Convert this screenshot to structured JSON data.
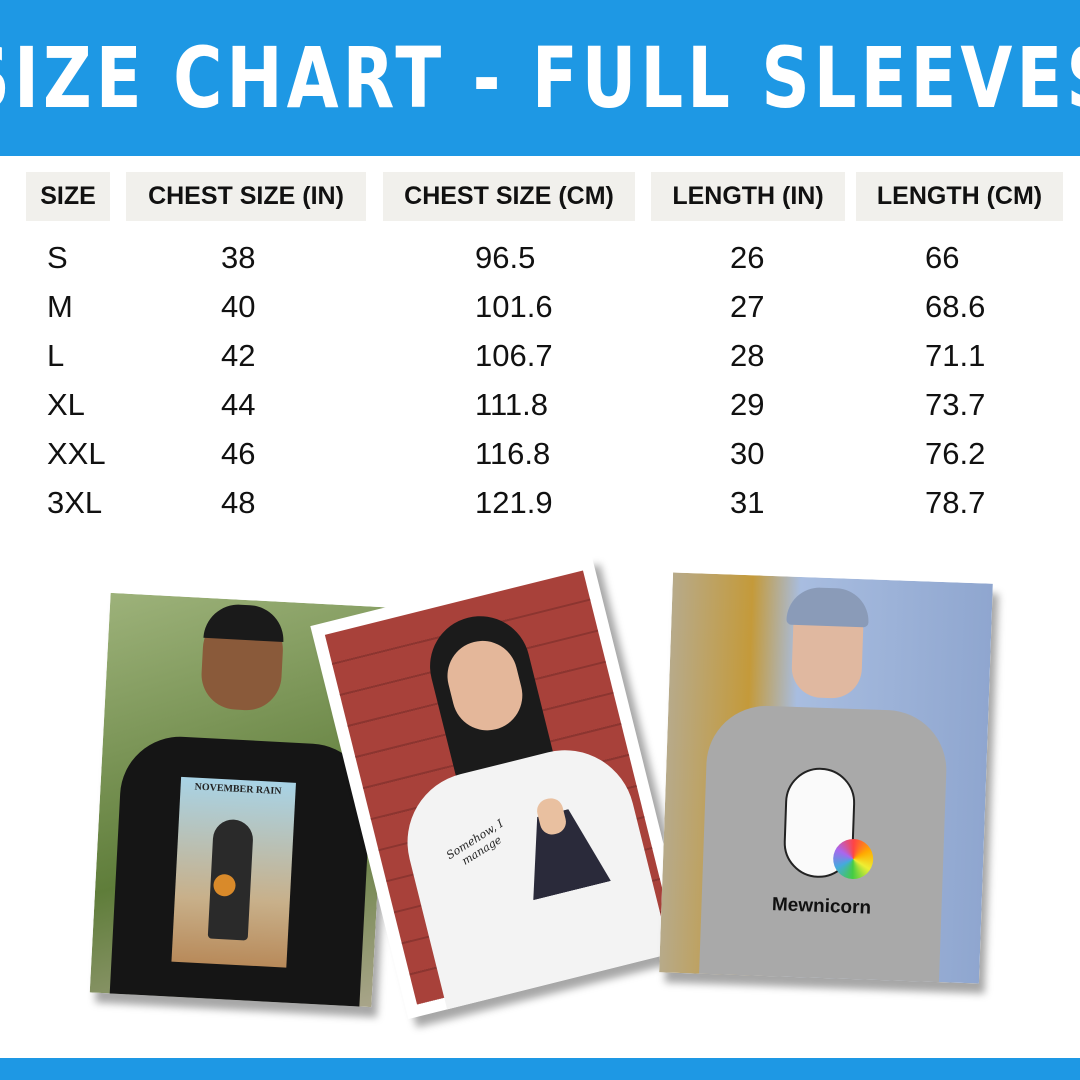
{
  "title": "SIZE CHART - FULL SLEEVES",
  "colors": {
    "accent": "#1e98e4",
    "header_cell_bg": "#f1f0ec"
  },
  "chart_data": {
    "type": "table",
    "columns": [
      "SIZE",
      "CHEST SIZE (IN)",
      "CHEST SIZE (CM)",
      "LENGTH (IN)",
      "LENGTH (CM)"
    ],
    "rows": [
      [
        "S",
        "38",
        "96.5",
        "26",
        "66"
      ],
      [
        "M",
        "40",
        "101.6",
        "27",
        "68.6"
      ],
      [
        "L",
        "42",
        "106.7",
        "28",
        "71.1"
      ],
      [
        "XL",
        "44",
        "111.8",
        "29",
        "73.7"
      ],
      [
        "XXL",
        "46",
        "116.8",
        "30",
        "76.2"
      ],
      [
        "3XL",
        "48",
        "121.9",
        "31",
        "78.7"
      ]
    ]
  },
  "photos": [
    {
      "print_text": "NOVEMBER RAIN",
      "shirt_color": "#151515",
      "bg": "#7f9a55"
    },
    {
      "print_text": "Somehow, I manage",
      "shirt_color": "#f3f3f3",
      "bg": "#a8413a"
    },
    {
      "print_text": "Mewnicorn",
      "shirt_color": "#a9a9a9",
      "bg": "#8fa6cf"
    }
  ]
}
